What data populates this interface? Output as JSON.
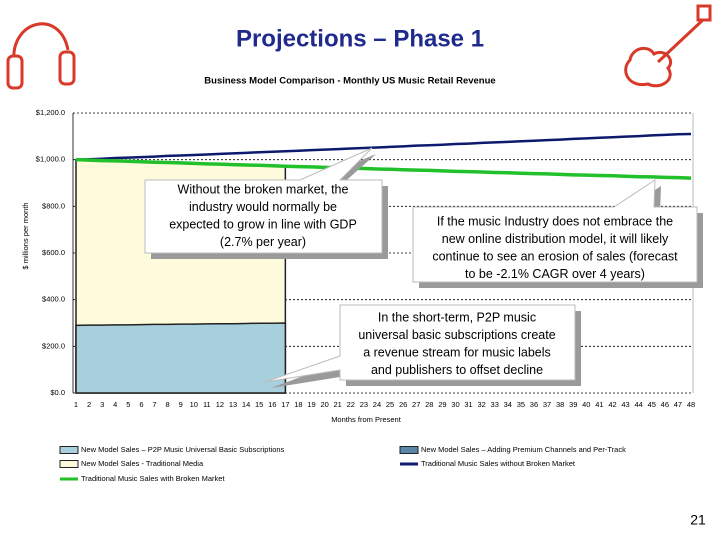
{
  "slide": {
    "title": "Projections – Phase 1",
    "page_number": "21"
  },
  "chart_data": {
    "type": "line",
    "title": "Business Model Comparison - Monthly US Music Retail Revenue",
    "x_label": "Months from Present",
    "y_label": "$ millions per month",
    "categories": [
      "1",
      "2",
      "3",
      "4",
      "5",
      "6",
      "7",
      "8",
      "9",
      "10",
      "11",
      "12",
      "13",
      "14",
      "15",
      "16",
      "17",
      "18",
      "19",
      "20",
      "21",
      "22",
      "23",
      "24",
      "25",
      "26",
      "27",
      "28",
      "29",
      "30",
      "31",
      "32",
      "33",
      "34",
      "35",
      "36",
      "37",
      "38",
      "39",
      "40",
      "41",
      "42",
      "43",
      "44",
      "45",
      "46",
      "47",
      "48"
    ],
    "ylim": [
      0,
      1200
    ],
    "yticks": [
      {
        "value": 0,
        "label": "$0.0"
      },
      {
        "value": 200,
        "label": "$200.0"
      },
      {
        "value": 400,
        "label": "$400.0"
      },
      {
        "value": 600,
        "label": "$600.0"
      },
      {
        "value": 800,
        "label": "$800.0"
      },
      {
        "value": 1000,
        "label": "$1,000.0"
      },
      {
        "value": 1200,
        "label": "$1,200.0"
      }
    ],
    "grid": true,
    "series": [
      {
        "name": "New Model Sales – P2P Music Universal Basic Subscriptions",
        "kind": "area",
        "color": "#a8d0dc",
        "values": [
          290,
          291,
          291,
          292,
          292,
          293,
          294,
          294,
          295,
          295,
          296,
          297,
          297,
          298,
          299,
          299,
          300,
          null,
          null,
          null,
          null,
          null,
          null,
          null,
          null,
          null,
          null,
          null,
          null,
          null,
          null,
          null,
          null,
          null,
          null,
          null,
          null,
          null,
          null,
          null,
          null,
          null,
          null,
          null,
          null,
          null,
          null,
          null
        ]
      },
      {
        "name": "New Model Sales – Adding Premium Channels and Per-Track",
        "kind": "area",
        "color": "#5a86a8",
        "values": [
          null,
          null,
          null,
          null,
          null,
          null,
          null,
          null,
          null,
          null,
          null,
          null,
          null,
          null,
          null,
          null,
          null,
          null,
          null,
          null,
          null,
          null,
          null,
          null,
          null,
          null,
          null,
          null,
          null,
          null,
          null,
          null,
          null,
          null,
          null,
          null,
          null,
          null,
          null,
          null,
          null,
          null,
          null,
          null,
          null,
          null,
          null,
          null
        ]
      },
      {
        "name": "New Model Sales - Traditional Media",
        "kind": "area",
        "color": "#fdfbdc",
        "values": [
          1000,
          998,
          996,
          995,
          993,
          991,
          989,
          988,
          986,
          984,
          982,
          981,
          979,
          977,
          976,
          974,
          972,
          null,
          null,
          null,
          null,
          null,
          null,
          null,
          null,
          null,
          null,
          null,
          null,
          null,
          null,
          null,
          null,
          null,
          null,
          null,
          null,
          null,
          null,
          null,
          null,
          null,
          null,
          null,
          null,
          null,
          null,
          null
        ]
      },
      {
        "name": "Traditional Music Sales without Broken Market",
        "kind": "line",
        "color": "#0d1a6e",
        "values": [
          1000,
          1002,
          1004,
          1007,
          1009,
          1011,
          1013,
          1016,
          1018,
          1020,
          1022,
          1025,
          1027,
          1029,
          1032,
          1034,
          1036,
          1038,
          1041,
          1043,
          1045,
          1048,
          1050,
          1052,
          1055,
          1057,
          1060,
          1062,
          1064,
          1067,
          1069,
          1072,
          1074,
          1076,
          1079,
          1081,
          1084,
          1086,
          1089,
          1091,
          1094,
          1096,
          1099,
          1101,
          1104,
          1106,
          1109,
          1110
        ]
      },
      {
        "name": "Traditional Music Sales with Broken Market",
        "kind": "line",
        "color": "#22c02a",
        "values": [
          1000,
          998,
          996,
          995,
          993,
          991,
          989,
          988,
          986,
          984,
          982,
          981,
          979,
          977,
          976,
          974,
          972,
          970,
          969,
          967,
          965,
          964,
          962,
          960,
          959,
          957,
          955,
          954,
          952,
          950,
          949,
          947,
          945,
          944,
          942,
          940,
          939,
          937,
          935,
          934,
          932,
          931,
          929,
          927,
          926,
          924,
          923,
          921
        ]
      }
    ],
    "annotations": [
      [
        "Without the broken market, the",
        "industry would normally be",
        "expected to grow in line with GDP",
        "(2.7% per year)"
      ],
      [
        "If the music Industry does not embrace the",
        "new online distribution model, it will likely",
        "continue to see an erosion of sales (forecast",
        "to be -2.1% CAGR over 4 years)"
      ],
      [
        "In the short-term, P2P music",
        "universal basic subscriptions create",
        "a revenue stream for music labels",
        "and publishers to offset decline"
      ]
    ]
  }
}
